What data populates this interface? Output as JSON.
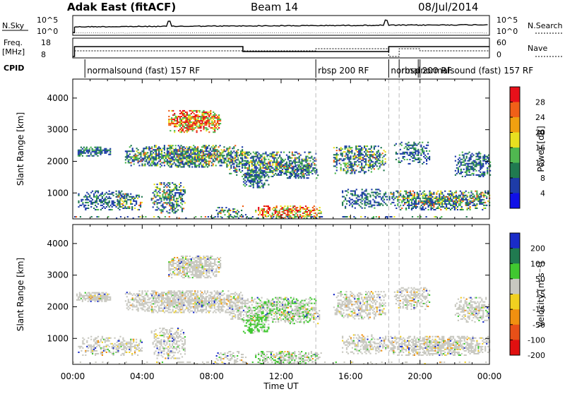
{
  "header": {
    "station": "Adak East (fitACF)",
    "beam": "Beam 14",
    "date": "08/Jul/2014"
  },
  "noise_panel": {
    "left_label": "N.Sky",
    "left_ticks": [
      "10^5",
      "10^0"
    ],
    "right_label": "N.Search",
    "right_ticks": [
      "10^5",
      "10^0"
    ]
  },
  "freq_panel": {
    "left_label_1": "Freq.",
    "left_label_2": "[MHz]",
    "left_ticks": [
      "18",
      "8"
    ],
    "right_label": "Nave",
    "right_ticks": [
      "60",
      "0"
    ]
  },
  "cpid": {
    "label": "CPID",
    "segments": [
      {
        "text": "normalsound (fast)  157 RF",
        "start_h": 0.7
      },
      {
        "text": "rbsp  200 RF",
        "start_h": 14.0
      },
      {
        "text": "normal",
        "start_h": 18.2
      },
      {
        "text": "rbsp",
        "start_h": 18.8
      },
      {
        "text": "200 RF",
        "start_h": 20.0
      },
      {
        "text": "normalsound (fast)  157 RF",
        "start_h": 19.9
      }
    ]
  },
  "chart_data": [
    {
      "type": "heatmap",
      "name": "power",
      "ylabel": "Slant Range [km]",
      "yticks": [
        1000,
        2000,
        3000,
        4000
      ],
      "ylim": [
        180,
        4600
      ],
      "xlim": [
        0,
        24
      ],
      "colorbar": {
        "label": "Power [dB]",
        "ticks": [
          "28",
          "24",
          "20",
          "16",
          "12",
          "8",
          "4"
        ],
        "colors": [
          "#e8101a",
          "#f06018",
          "#f0a010",
          "#e8e020",
          "#50b850",
          "#207a50",
          "#1e3ca8",
          "#1010e8"
        ]
      }
    },
    {
      "type": "heatmap",
      "name": "velocity",
      "ylabel": "Slant Range [km]",
      "yticks": [
        1000,
        2000,
        3000,
        4000
      ],
      "ylim": [
        180,
        4600
      ],
      "xlim": [
        0,
        24
      ],
      "xlabel": "Time UT",
      "xticks": [
        "00:00",
        "04:00",
        "08:00",
        "12:00",
        "16:00",
        "20:00",
        "00:00"
      ],
      "colorbar": {
        "label": "Velocity [m s⁻¹]",
        "ticks": [
          "200",
          "100",
          "50",
          "15",
          "-15",
          "-50",
          "-100",
          "-200"
        ],
        "colors": [
          "#1a2cc8",
          "#207a50",
          "#40c830",
          "#c8c8c0",
          "#f0d020",
          "#f09010",
          "#e85018",
          "#e01010"
        ]
      }
    }
  ]
}
